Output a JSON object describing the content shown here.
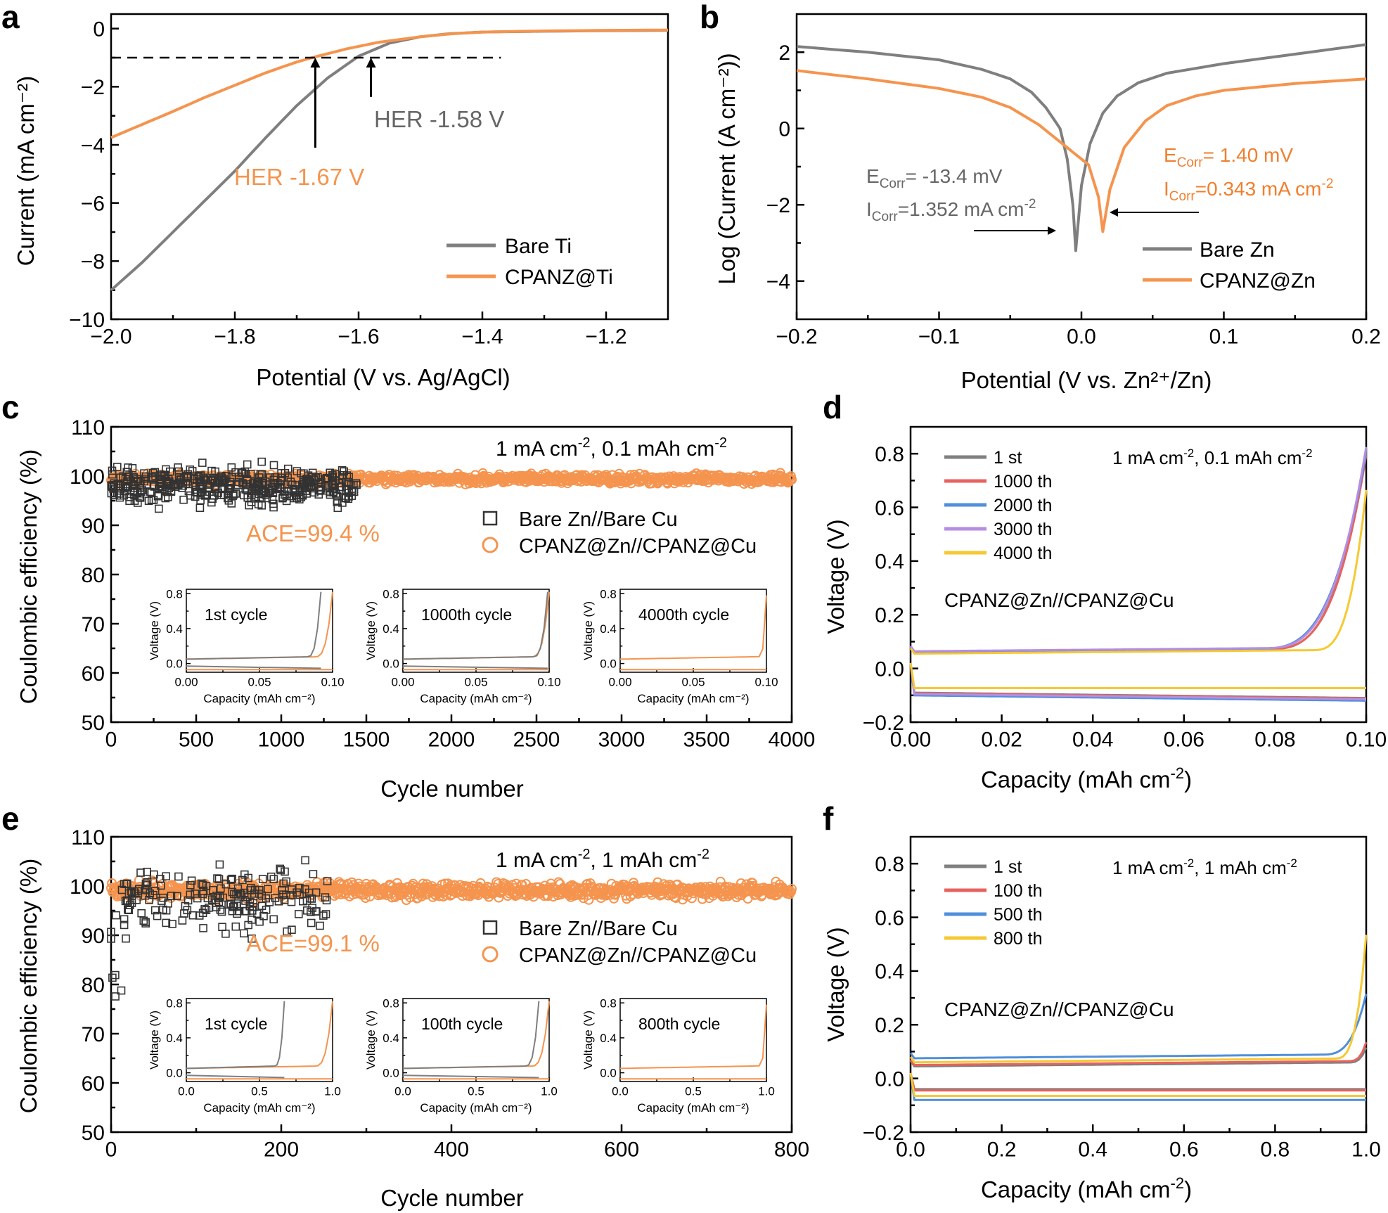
{
  "colors": {
    "gray": "#7f7f7f",
    "orange": "#f5944e",
    "black": "#000000",
    "dark": "#333333",
    "red": "#e8625d",
    "blue": "#4f8fdc",
    "purple": "#b58ee0",
    "yellow": "#f5c933"
  },
  "chart_data": [
    {
      "id": "a",
      "panel_label": "a",
      "type": "line",
      "xlabel": "Potential (V vs. Ag/AgCl)",
      "ylabel": "Current (mA cm⁻²)",
      "xlim": [
        -2.0,
        -1.1
      ],
      "ylim": [
        -10,
        0.5
      ],
      "xticks": [
        -2.0,
        -1.8,
        -1.6,
        -1.4,
        -1.2
      ],
      "xtick_labels": [
        "−2.0",
        "−1.8",
        "−1.6",
        "−1.4",
        "−1.2"
      ],
      "yticks": [
        0,
        -2,
        -4,
        -6,
        -8,
        -10
      ],
      "ytick_labels": [
        "0",
        "−2",
        "−4",
        "−6",
        "−8",
        "−10"
      ],
      "legend": [
        "Bare Ti",
        "CPANZ@Ti"
      ],
      "legend_position": "bottom-right",
      "reference_line": {
        "y": -1.0,
        "x_from": -2.0,
        "x_to": -1.37,
        "style": "dashed"
      },
      "annotations": [
        "HER -1.58 V",
        "HER -1.67 V"
      ],
      "series": [
        {
          "name": "Bare Ti",
          "color": "#7f7f7f",
          "x": [
            -2.0,
            -1.95,
            -1.9,
            -1.85,
            -1.8,
            -1.75,
            -1.7,
            -1.65,
            -1.6,
            -1.55,
            -1.5,
            -1.45,
            -1.4,
            -1.3,
            -1.2,
            -1.1
          ],
          "y": [
            -9.0,
            -8.05,
            -7.0,
            -5.95,
            -4.9,
            -3.75,
            -2.65,
            -1.7,
            -0.95,
            -0.5,
            -0.28,
            -0.17,
            -0.12,
            -0.09,
            -0.07,
            -0.06
          ]
        },
        {
          "name": "CPANZ@Ti",
          "color": "#f5944e",
          "x": [
            -2.0,
            -1.95,
            -1.9,
            -1.85,
            -1.8,
            -1.75,
            -1.7,
            -1.67,
            -1.62,
            -1.57,
            -1.5,
            -1.45,
            -1.4,
            -1.3,
            -1.2,
            -1.1
          ],
          "y": [
            -3.75,
            -3.3,
            -2.85,
            -2.38,
            -1.95,
            -1.52,
            -1.15,
            -0.97,
            -0.7,
            -0.48,
            -0.28,
            -0.18,
            -0.12,
            -0.08,
            -0.06,
            -0.05
          ]
        }
      ]
    },
    {
      "id": "b",
      "panel_label": "b",
      "type": "line",
      "xlabel": "Potential (V vs. Zn²⁺/Zn)",
      "ylabel": "Log (Current (A cm⁻²))",
      "xlim": [
        -0.2,
        0.2
      ],
      "ylim": [
        -5,
        3
      ],
      "xticks": [
        -0.2,
        -0.1,
        0.0,
        0.1,
        0.2
      ],
      "xtick_labels": [
        "−0.2",
        "−0.1",
        "0.0",
        "0.1",
        "0.2"
      ],
      "yticks": [
        2,
        0,
        -2,
        -4
      ],
      "ytick_labels": [
        "2",
        "0",
        "−2",
        "−4"
      ],
      "legend": [
        "Bare Zn",
        "CPANZ@Zn"
      ],
      "legend_position": "bottom-right",
      "annotations": [
        "ECorr= -13.4 mV",
        "ICorr=1.352 mA cm-2",
        "ECorr= 1.40 mV",
        "ICorr=0.343 mA cm-2"
      ],
      "series": [
        {
          "name": "Bare Zn",
          "color": "#7f7f7f",
          "x": [
            -0.2,
            -0.15,
            -0.1,
            -0.07,
            -0.05,
            -0.035,
            -0.025,
            -0.015,
            -0.01,
            -0.006,
            -0.004,
            0.0,
            0.006,
            0.015,
            0.025,
            0.04,
            0.06,
            0.1,
            0.15,
            0.2
          ],
          "y": [
            2.15,
            2.0,
            1.8,
            1.55,
            1.3,
            0.95,
            0.55,
            0.0,
            -0.8,
            -2.0,
            -3.2,
            -1.5,
            -0.4,
            0.4,
            0.85,
            1.2,
            1.45,
            1.7,
            1.95,
            2.2
          ]
        },
        {
          "name": "CPANZ@Zn",
          "color": "#f5944e",
          "x": [
            -0.2,
            -0.15,
            -0.1,
            -0.07,
            -0.05,
            -0.03,
            -0.01,
            0.005,
            0.012,
            0.015,
            0.02,
            0.03,
            0.045,
            0.06,
            0.08,
            0.1,
            0.15,
            0.2
          ],
          "y": [
            1.52,
            1.3,
            1.05,
            0.82,
            0.55,
            0.1,
            -0.5,
            -0.95,
            -1.8,
            -2.7,
            -1.6,
            -0.5,
            0.2,
            0.6,
            0.85,
            1.0,
            1.18,
            1.3
          ]
        }
      ]
    },
    {
      "id": "c",
      "panel_label": "c",
      "type": "scatter",
      "xlabel": "Cycle number",
      "ylabel": "Coulombic efficiency (%)",
      "xlim": [
        0,
        4000
      ],
      "ylim": [
        50,
        110
      ],
      "xticks": [
        0,
        500,
        1000,
        1500,
        2000,
        2500,
        3000,
        3500,
        4000
      ],
      "yticks": [
        50,
        60,
        70,
        80,
        90,
        100,
        110
      ],
      "condition": "1 mA cm⁻², 0.1 mAh cm⁻²",
      "ace_label": "ACE=99.4 %",
      "legend": [
        "Bare Zn//Bare Cu",
        "CPANZ@Zn//CPANZ@Cu"
      ],
      "legend_position": "center-right",
      "series": [
        {
          "name": "Bare Zn//Bare Cu",
          "marker": "square",
          "color": "#333333",
          "x_range": [
            0,
            1450
          ],
          "mean": 98.0,
          "spread_range": [
            91,
            105
          ]
        },
        {
          "name": "CPANZ@Zn//CPANZ@Cu",
          "marker": "circle",
          "color": "#f5944e",
          "x_range": [
            0,
            4000
          ],
          "mean": 99.4,
          "spread_range": [
            98,
            101
          ]
        }
      ],
      "insets": [
        {
          "title": "1st cycle",
          "xlim": [
            0,
            0.1
          ],
          "xticks": [
            0.0,
            0.05,
            0.1
          ],
          "xtick_labels": [
            "0.00",
            "0.05",
            "0.10"
          ],
          "ylim": [
            -0.1,
            0.85
          ],
          "yticks": [
            0.0,
            0.4,
            0.8
          ],
          "ytick_labels": [
            "0.0",
            "0.4",
            "0.8"
          ],
          "xlabel": "Capacity (mAh cm⁻²)",
          "ylabel": "Voltage (V)",
          "gray_end": 0.092
        },
        {
          "title": "1000th cycle",
          "xlim": [
            0,
            0.1
          ],
          "xticks": [
            0.0,
            0.05,
            0.1
          ],
          "xtick_labels": [
            "0.00",
            "0.05",
            "0.10"
          ],
          "ylim": [
            -0.1,
            0.85
          ],
          "yticks": [
            0.0,
            0.4,
            0.8
          ],
          "ytick_labels": [
            "0.0",
            "0.4",
            "0.8"
          ],
          "xlabel": "Capacity (mAh cm⁻²)",
          "ylabel": "Voltage (V)",
          "gray_end": 0.099
        },
        {
          "title": "4000th cycle",
          "xlim": [
            0,
            0.1
          ],
          "xticks": [
            0.0,
            0.05,
            0.1
          ],
          "xtick_labels": [
            "0.00",
            "0.05",
            "0.10"
          ],
          "ylim": [
            -0.1,
            0.85
          ],
          "yticks": [
            0.0,
            0.4,
            0.8
          ],
          "ytick_labels": [
            "0.0",
            "0.4",
            "0.8"
          ],
          "xlabel": "Capacity (mAh cm⁻²)",
          "ylabel": "Voltage (V)",
          "gray_end": null
        }
      ]
    },
    {
      "id": "d",
      "panel_label": "d",
      "type": "line",
      "xlabel": "Capacity (mAh cm⁻²)",
      "ylabel": "Voltage (V)",
      "xlim": [
        0,
        0.1
      ],
      "ylim": [
        -0.2,
        0.9
      ],
      "xticks": [
        0.0,
        0.02,
        0.04,
        0.06,
        0.08,
        0.1
      ],
      "xtick_labels": [
        "0.00",
        "0.02",
        "0.04",
        "0.06",
        "0.08",
        "0.10"
      ],
      "yticks": [
        -0.2,
        0.0,
        0.2,
        0.4,
        0.6,
        0.8
      ],
      "ytick_labels": [
        "−0.2",
        "0.0",
        "0.2",
        "0.4",
        "0.6",
        "0.8"
      ],
      "condition": "1 mA cm⁻², 0.1 mAh cm⁻²",
      "cell_label": "CPANZ@Zn//CPANZ@Cu",
      "legend_position": "top-left",
      "series": [
        {
          "name": "1 st",
          "color": "#7f7f7f",
          "plate": 0.06,
          "strip": -0.09,
          "knee": 0.078,
          "end_v": 0.8
        },
        {
          "name": "1000 th",
          "color": "#e8625d",
          "plate": 0.061,
          "strip": -0.092,
          "knee": 0.078,
          "end_v": 0.78
        },
        {
          "name": "2000 th",
          "color": "#4f8fdc",
          "plate": 0.062,
          "strip": -0.1,
          "knee": 0.076,
          "end_v": 0.79
        },
        {
          "name": "3000 th",
          "color": "#b58ee0",
          "plate": 0.064,
          "strip": -0.095,
          "knee": 0.077,
          "end_v": 0.81
        },
        {
          "name": "4000 th",
          "color": "#f5c933",
          "plate": 0.055,
          "strip": -0.073,
          "knee": 0.088,
          "end_v": 0.65
        }
      ]
    },
    {
      "id": "e",
      "panel_label": "e",
      "type": "scatter",
      "xlabel": "Cycle number",
      "ylabel": "Coulombic efficiency (%)",
      "xlim": [
        0,
        800
      ],
      "ylim": [
        50,
        110
      ],
      "xticks": [
        0,
        200,
        400,
        600,
        800
      ],
      "yticks": [
        50,
        60,
        70,
        80,
        90,
        100,
        110
      ],
      "condition": "1 mA cm⁻², 1 mAh cm⁻²",
      "ace_label": "ACE=99.1 %",
      "legend": [
        "Bare Zn//Bare Cu",
        "CPANZ@Zn//CPANZ@Cu"
      ],
      "legend_position": "center-right",
      "series": [
        {
          "name": "Bare Zn//Bare Cu",
          "marker": "square",
          "color": "#333333",
          "x_range": [
            0,
            255
          ],
          "mean": 97.0,
          "spread_range": [
            67,
            110
          ]
        },
        {
          "name": "CPANZ@Zn//CPANZ@Cu",
          "marker": "circle",
          "color": "#f5944e",
          "x_range": [
            0,
            800
          ],
          "mean": 99.1,
          "spread_range": [
            97,
            102
          ]
        }
      ],
      "insets": [
        {
          "title": "1st cycle",
          "xlim": [
            0,
            1.0
          ],
          "xticks": [
            0.0,
            0.5,
            1.0
          ],
          "xtick_labels": [
            "0.0",
            "0.5",
            "1.0"
          ],
          "ylim": [
            -0.1,
            0.85
          ],
          "yticks": [
            0.0,
            0.4,
            0.8
          ],
          "ytick_labels": [
            "0.0",
            "0.4",
            "0.8"
          ],
          "xlabel": "Capacity (mAh cm⁻²)",
          "ylabel": "Voltage (V)",
          "gray_end": 0.67
        },
        {
          "title": "100th cycle",
          "xlim": [
            0,
            1.0
          ],
          "xticks": [
            0.0,
            0.5,
            1.0
          ],
          "xtick_labels": [
            "0.0",
            "0.5",
            "1.0"
          ],
          "ylim": [
            -0.1,
            0.85
          ],
          "yticks": [
            0.0,
            0.4,
            0.8
          ],
          "ytick_labels": [
            "0.0",
            "0.4",
            "0.8"
          ],
          "xlabel": "Capacity (mAh cm⁻²)",
          "ylabel": "Voltage (V)",
          "gray_end": 0.93
        },
        {
          "title": "800th cycle",
          "xlim": [
            0,
            1.0
          ],
          "xticks": [
            0.0,
            0.5,
            1.0
          ],
          "xtick_labels": [
            "0.0",
            "0.5",
            "1.0"
          ],
          "ylim": [
            -0.1,
            0.85
          ],
          "yticks": [
            0.0,
            0.4,
            0.8
          ],
          "ytick_labels": [
            "0.0",
            "0.4",
            "0.8"
          ],
          "xlabel": "Capacity (mAh cm⁻²)",
          "ylabel": "Voltage (V)",
          "gray_end": null
        }
      ]
    },
    {
      "id": "f",
      "panel_label": "f",
      "type": "line",
      "xlabel": "Capacity (mAh cm⁻²)",
      "ylabel": "Voltage (V)",
      "xlim": [
        0,
        1.0
      ],
      "ylim": [
        -0.2,
        0.9
      ],
      "xticks": [
        0.0,
        0.2,
        0.4,
        0.6,
        0.8,
        1.0
      ],
      "xtick_labels": [
        "0.0",
        "0.2",
        "0.4",
        "0.6",
        "0.8",
        "1.0"
      ],
      "yticks": [
        -0.2,
        0.0,
        0.2,
        0.4,
        0.6,
        0.8
      ],
      "ytick_labels": [
        "−0.2",
        "0.0",
        "0.2",
        "0.4",
        "0.6",
        "0.8"
      ],
      "condition": "1 mA cm⁻², 1 mAh cm⁻²",
      "cell_label": "CPANZ@Zn//CPANZ@Cu",
      "legend_position": "top-left",
      "series": [
        {
          "name": "1 st",
          "color": "#7f7f7f",
          "plate": 0.045,
          "strip": -0.04,
          "knee": 0.96,
          "end_v": 0.1
        },
        {
          "name": "100 th",
          "color": "#e8625d",
          "plate": 0.05,
          "strip": -0.045,
          "knee": 0.96,
          "end_v": 0.12
        },
        {
          "name": "500 th",
          "color": "#4f8fdc",
          "plate": 0.075,
          "strip": -0.08,
          "knee": 0.9,
          "end_v": 0.3
        },
        {
          "name": "800 th",
          "color": "#f5c933",
          "plate": 0.06,
          "strip": -0.065,
          "knee": 0.93,
          "end_v": 0.52
        }
      ]
    }
  ]
}
